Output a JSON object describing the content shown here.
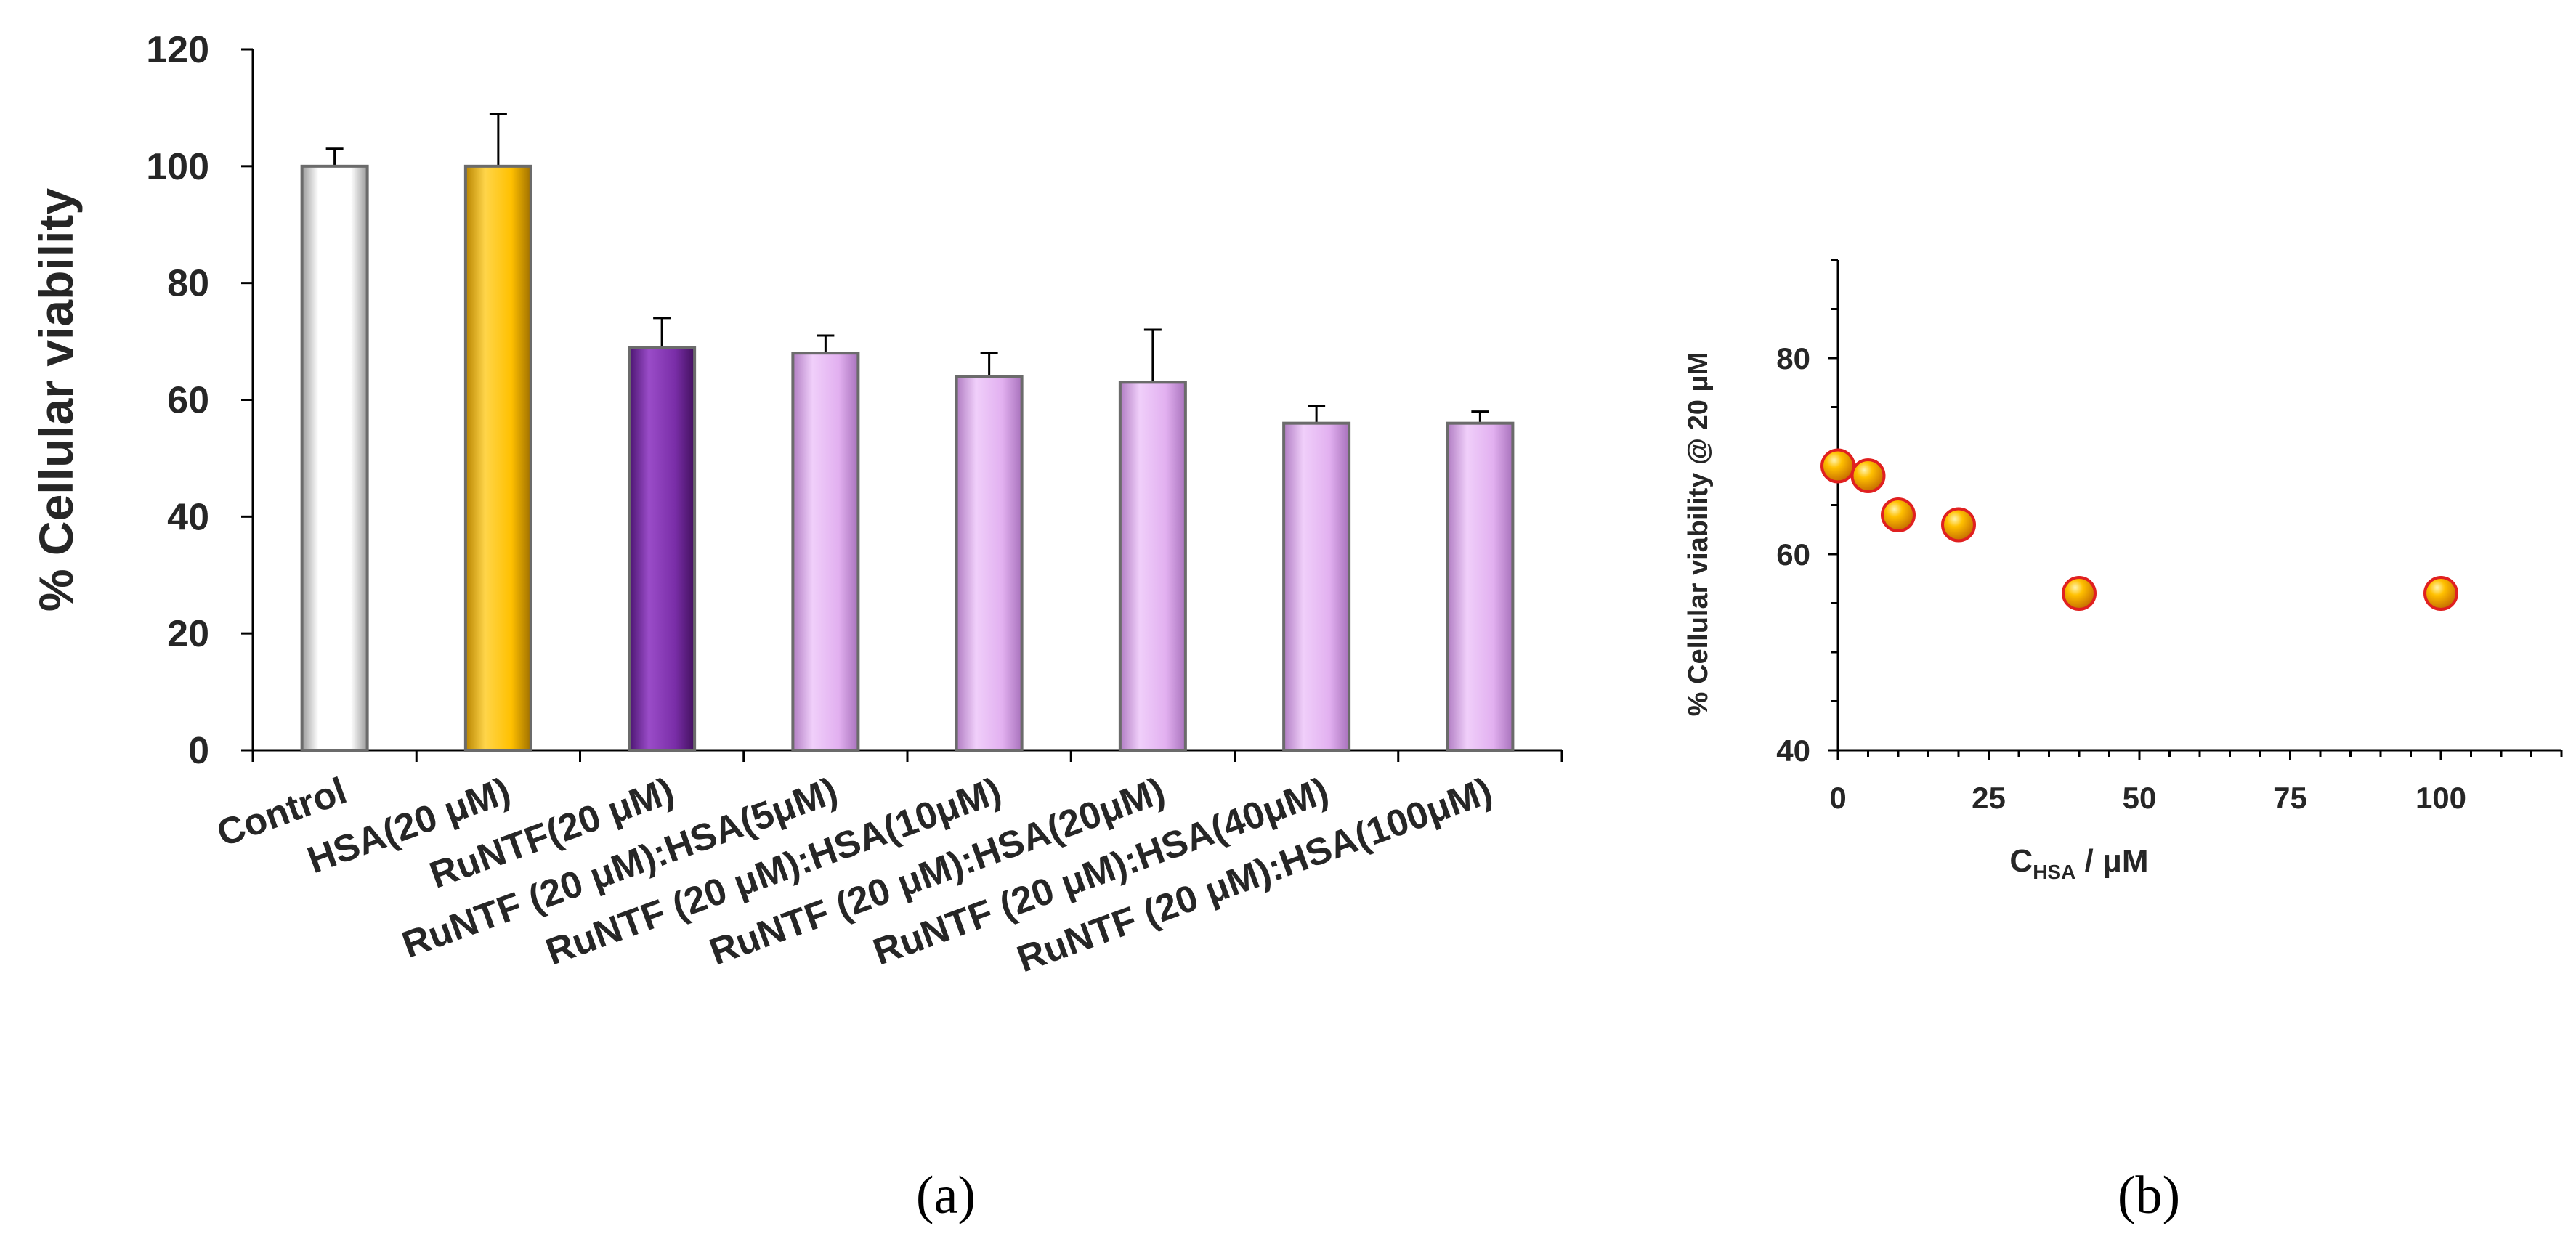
{
  "chart_data": [
    {
      "panel": "(a)",
      "type": "bar",
      "ylabel": "% Cellular viability",
      "ylim": [
        0,
        120
      ],
      "yticks": [
        0,
        20,
        40,
        60,
        80,
        100,
        120
      ],
      "categories": [
        "Control",
        "HSA(20 μM)",
        "RuNTF(20 μM)",
        "RuNTF (20 μM):HSA(5μM)",
        "RuNTF (20 μM):HSA(10μM)",
        "RuNTF (20 μM):HSA(20μM)",
        "RuNTF (20 μM):HSA(40μM)",
        "RuNTF (20 μM):HSA(100μM)"
      ],
      "values": [
        100,
        100,
        69,
        68,
        64,
        63,
        56,
        56
      ],
      "errors": [
        3,
        9,
        5,
        3,
        4,
        9,
        3,
        2
      ],
      "colors": [
        "#ffffff",
        "#ffc000",
        "#7030a0",
        "#e2b0f0",
        "#e2b0f0",
        "#e2b0f0",
        "#e2b0f0",
        "#e2b0f0"
      ],
      "grid": false
    },
    {
      "panel": "(b)",
      "type": "scatter",
      "xlabel_main": "C",
      "xlabel_sub": "HSA",
      "xlabel_unit": " / μM",
      "ylabel": "% Cellular viability @ 20 μM",
      "xlim": [
        0,
        120
      ],
      "ylim": [
        40,
        90
      ],
      "xticks": [
        0,
        25,
        50,
        75,
        100
      ],
      "yticks": [
        40,
        60,
        80
      ],
      "x": [
        0,
        5,
        10,
        20,
        40,
        100
      ],
      "y": [
        69,
        68,
        64,
        63,
        56,
        56
      ],
      "marker_color": "#ffc000",
      "marker_edge": "#e02020",
      "grid": false
    }
  ]
}
